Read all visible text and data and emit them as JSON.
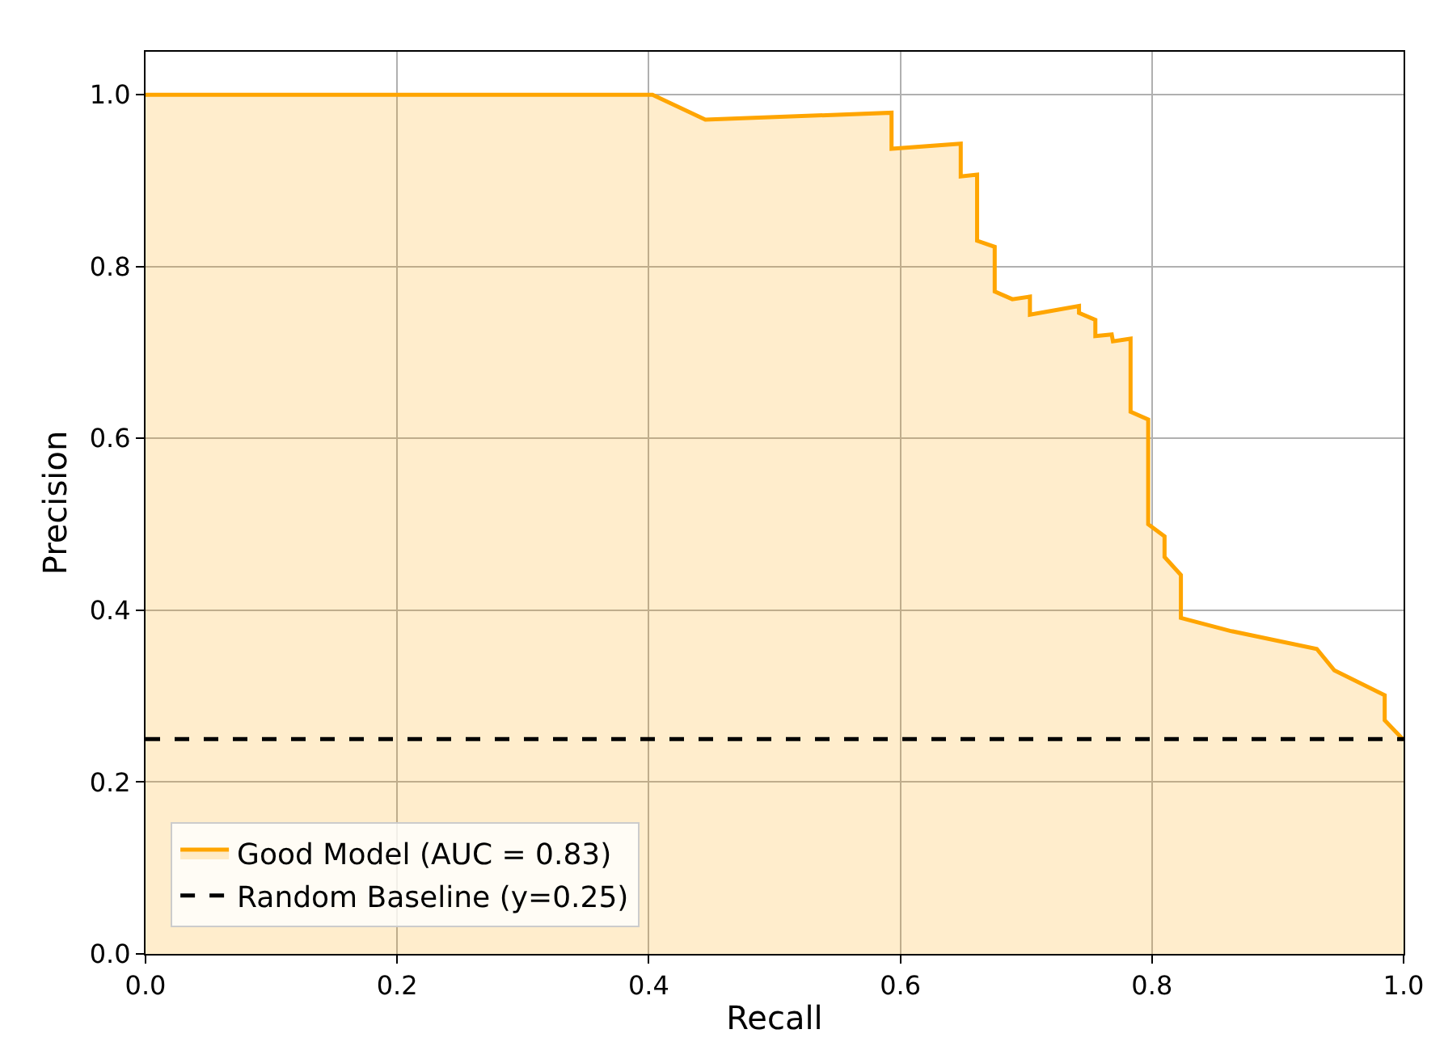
{
  "chart_data": {
    "type": "area",
    "xlabel": "Recall",
    "ylabel": "Precision",
    "series": [
      {
        "name": "Good Model (AUC = 0.83)",
        "color": "#ffa500",
        "x": [
          0,
          0.403,
          0.445,
          0.593,
          0.593,
          0.648,
          0.648,
          0.661,
          0.661,
          0.675,
          0.675,
          0.689,
          0.703,
          0.703,
          0.742,
          0.742,
          0.755,
          0.755,
          0.768,
          0.769,
          0.783,
          0.783,
          0.797,
          0.797,
          0.81,
          0.81,
          0.823,
          0.823,
          0.862,
          0.931,
          0.945,
          0.985,
          0.985,
          1.0
        ],
        "values": [
          1.0,
          1.0,
          0.971,
          0.979,
          0.937,
          0.943,
          0.905,
          0.907,
          0.83,
          0.823,
          0.771,
          0.762,
          0.765,
          0.744,
          0.754,
          0.746,
          0.738,
          0.719,
          0.721,
          0.713,
          0.716,
          0.631,
          0.622,
          0.5,
          0.486,
          0.462,
          0.441,
          0.391,
          0.376,
          0.355,
          0.33,
          0.301,
          0.272,
          0.249
        ]
      }
    ],
    "ref_lines": [
      {
        "axis": "y",
        "value": 0.25,
        "label": "Random Baseline (y=0.25)",
        "color": "#000000",
        "line_style": "dashed"
      }
    ],
    "xlim": [
      0,
      1
    ],
    "ylim": [
      0,
      1.05
    ],
    "xticks": [
      {
        "value": 0,
        "label": "0.0"
      },
      {
        "value": 0.2,
        "label": "0.2"
      },
      {
        "value": 0.4,
        "label": "0.4"
      },
      {
        "value": 0.6,
        "label": "0.6"
      },
      {
        "value": 0.8,
        "label": "0.8"
      },
      {
        "value": 1,
        "label": "1.0"
      }
    ],
    "yticks": [
      {
        "value": 0,
        "label": "0.0"
      },
      {
        "value": 0.2,
        "label": "0.2"
      },
      {
        "value": 0.4,
        "label": "0.4"
      },
      {
        "value": 0.6,
        "label": "0.6"
      },
      {
        "value": 0.8,
        "label": "0.8"
      },
      {
        "value": 1,
        "label": "1.0"
      }
    ],
    "grid": true,
    "legend": "bottom left"
  }
}
